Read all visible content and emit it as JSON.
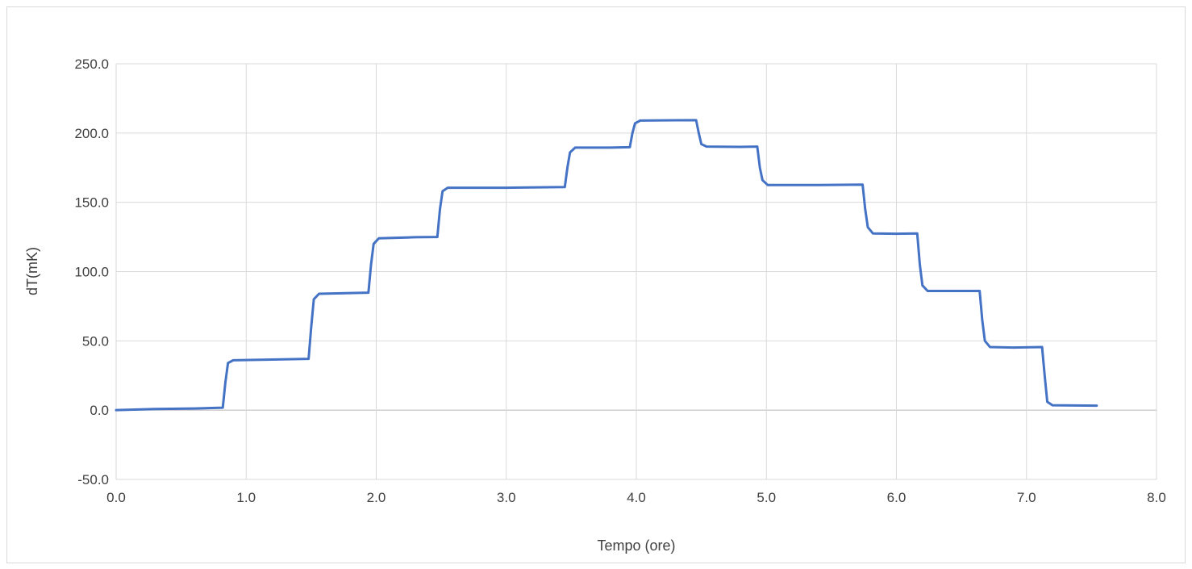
{
  "chart_data": {
    "type": "line",
    "title": "",
    "xlabel": "Tempo (ore)",
    "ylabel": "dT(mK)",
    "xlim": [
      0.0,
      8.0
    ],
    "ylim": [
      -50.0,
      250.0
    ],
    "x_ticks": [
      "0.0",
      "1.0",
      "2.0",
      "3.0",
      "4.0",
      "5.0",
      "6.0",
      "7.0",
      "8.0"
    ],
    "y_ticks": [
      "-50.0",
      "0.0",
      "50.0",
      "100.0",
      "150.0",
      "200.0",
      "250.0"
    ],
    "grid": true,
    "legend": "none",
    "series": [
      {
        "color": "#4472C4",
        "x": [
          0.0,
          0.3,
          0.6,
          0.82,
          0.84,
          0.86,
          0.9,
          1.2,
          1.48,
          1.5,
          1.52,
          1.56,
          1.8,
          1.94,
          1.96,
          1.98,
          2.02,
          2.3,
          2.47,
          2.49,
          2.51,
          2.55,
          3.0,
          3.45,
          3.47,
          3.49,
          3.53,
          3.8,
          3.95,
          3.97,
          3.99,
          4.03,
          4.3,
          4.46,
          4.48,
          4.5,
          4.54,
          4.8,
          4.93,
          4.95,
          4.97,
          5.01,
          5.4,
          5.74,
          5.76,
          5.78,
          5.82,
          6.0,
          6.16,
          6.18,
          6.2,
          6.24,
          6.5,
          6.64,
          6.66,
          6.68,
          6.72,
          6.9,
          7.12,
          7.14,
          7.16,
          7.2,
          7.54
        ],
        "y": [
          0.0,
          0.8,
          1.2,
          1.8,
          20.0,
          34.0,
          36.0,
          36.5,
          37.0,
          60.0,
          80.0,
          84.0,
          84.5,
          84.8,
          105.0,
          120.0,
          124.0,
          124.8,
          125.0,
          145.0,
          158.0,
          160.5,
          160.5,
          161.0,
          175.0,
          186.0,
          189.5,
          189.5,
          189.8,
          200.0,
          207.0,
          209.0,
          209.2,
          209.3,
          200.0,
          192.0,
          190.2,
          190.0,
          190.2,
          175.0,
          166.0,
          162.5,
          162.5,
          162.8,
          145.0,
          132.0,
          127.5,
          127.3,
          127.5,
          105.0,
          90.0,
          86.0,
          86.0,
          86.0,
          65.0,
          50.0,
          45.5,
          45.2,
          45.5,
          25.0,
          6.0,
          3.5,
          3.2
        ]
      }
    ]
  }
}
